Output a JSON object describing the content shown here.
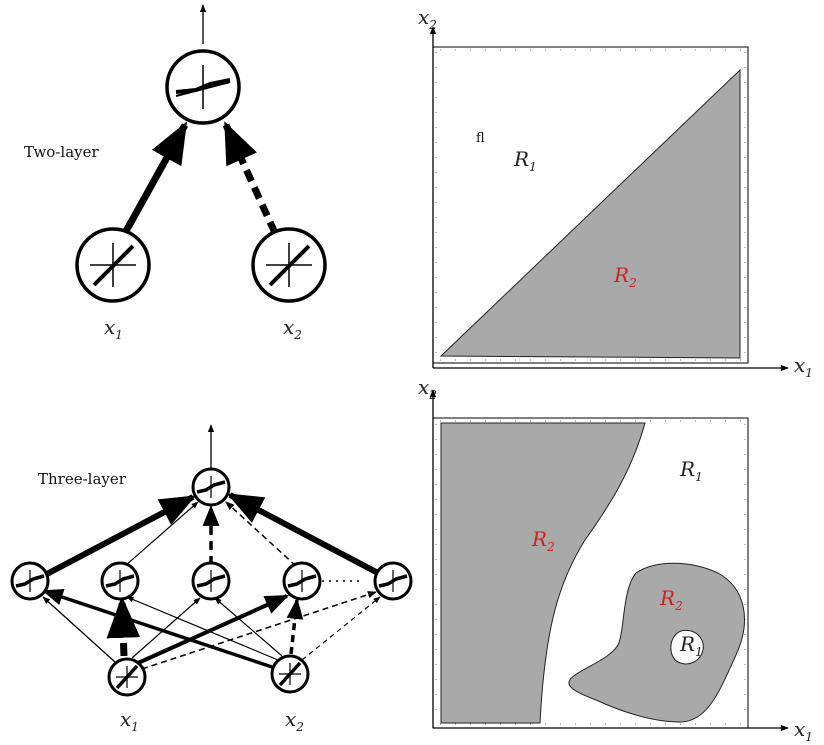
{
  "panels": {
    "two_layer": {
      "title": "Two-layer",
      "inputs": [
        {
          "name": "x",
          "sub": "1"
        },
        {
          "name": "x",
          "sub": "2"
        }
      ]
    },
    "three_layer": {
      "title": "Three-layer",
      "inputs": [
        {
          "name": "x",
          "sub": "1"
        },
        {
          "name": "x",
          "sub": "2"
        }
      ]
    }
  },
  "plots": {
    "top": {
      "x_axis": {
        "name": "x",
        "sub": "1"
      },
      "y_axis": {
        "name": "x",
        "sub": "2"
      },
      "stray_mark": "fl",
      "regions": [
        {
          "name": "R",
          "sub": "1",
          "color": "#222222"
        },
        {
          "name": "R",
          "sub": "2",
          "color": "#cc2222"
        }
      ]
    },
    "bottom": {
      "x_axis": {
        "name": "x",
        "sub": "1"
      },
      "y_axis": {
        "name": "x",
        "sub": "2"
      },
      "regions": [
        {
          "name": "R",
          "sub": "1",
          "color": "#222222"
        },
        {
          "name": "R",
          "sub": "2",
          "color": "#cc2222"
        },
        {
          "name": "R",
          "sub": "2",
          "color": "#cc2222"
        },
        {
          "name": "R",
          "sub": "1",
          "color": "#222222"
        }
      ]
    }
  },
  "colors": {
    "region_fill": "#a9a9a9",
    "line": "#000000"
  }
}
